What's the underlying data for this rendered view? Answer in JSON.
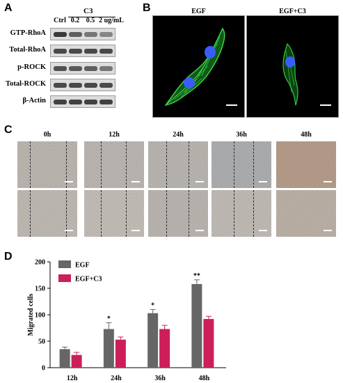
{
  "panels": {
    "a": "A",
    "b": "B",
    "c": "C",
    "d": "D"
  },
  "panel_a": {
    "treatment_header": "C3",
    "lanes": [
      "Ctrl",
      "0.2",
      "0.5",
      "2 ug/mL"
    ],
    "rows": [
      {
        "label": "GTP-RhoA",
        "intensity": [
          0.95,
          0.7,
          0.55,
          0.45
        ]
      },
      {
        "label": "Total-RhoA",
        "intensity": [
          0.85,
          0.85,
          0.85,
          0.85
        ]
      },
      {
        "label": "p-ROCK",
        "intensity": [
          0.8,
          0.75,
          0.7,
          0.55
        ]
      },
      {
        "label": "Total-ROCK",
        "intensity": [
          0.85,
          0.85,
          0.85,
          0.85
        ]
      },
      {
        "label": "β-Actin",
        "intensity": [
          0.9,
          0.9,
          0.9,
          0.9
        ]
      }
    ]
  },
  "panel_b": {
    "images": [
      {
        "title": "EGF"
      },
      {
        "title": "EGF+C3"
      }
    ],
    "stain_colors": {
      "actin": "#2ecc40",
      "nucleus": "#3a5cff"
    }
  },
  "panel_c": {
    "timepoints": [
      "0h",
      "12h",
      "24h",
      "36h",
      "48h"
    ]
  },
  "chart_data": {
    "type": "bar",
    "categories": [
      "12h",
      "24h",
      "36h",
      "48h"
    ],
    "series": [
      {
        "name": "EGF",
        "color": "#666666",
        "values": [
          35,
          73,
          103,
          158
        ],
        "errors": [
          4,
          12,
          7,
          8
        ],
        "significance": [
          "",
          "*",
          "*",
          "**"
        ]
      },
      {
        "name": "EGF+C3",
        "color": "#cc1f5a",
        "values": [
          24,
          53,
          73,
          92
        ],
        "errors": [
          5,
          5,
          7,
          5
        ]
      }
    ],
    "xlabel": "",
    "ylabel": "Migrated cells",
    "ylim": [
      0,
      200
    ],
    "yticks": [
      0,
      50,
      100,
      150,
      200
    ],
    "legend_position": "top-left"
  }
}
